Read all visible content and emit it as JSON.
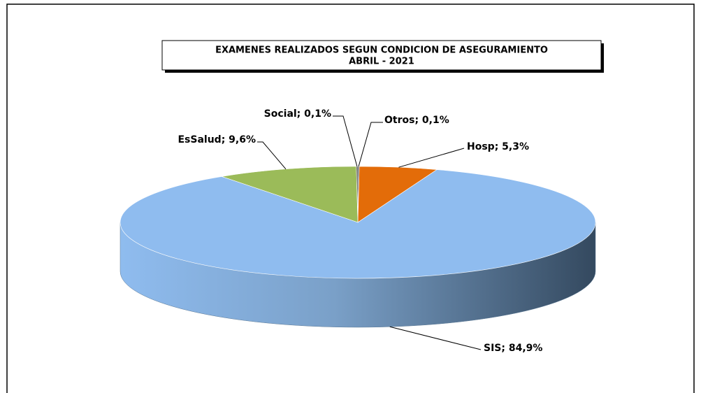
{
  "chart_data": {
    "type": "pie",
    "title": "EXAMENES REALIZADOS SEGUN CONDICION DE ASEGURAMIENTO",
    "subtitle": "ABRIL - 2021",
    "values": [
      0.1,
      5.3,
      84.9,
      9.6,
      0.1
    ],
    "value_labels": [
      "Otros; 0,1%",
      "Hosp; 5,3%",
      "SIS; 84,9%",
      "EsSalud; 9,6%",
      "Social; 0,1%"
    ],
    "colors": [
      "#4d4d4d",
      "#e36c09",
      "#8fbcef",
      "#9bbb59",
      "#4d4d4d"
    ]
  }
}
